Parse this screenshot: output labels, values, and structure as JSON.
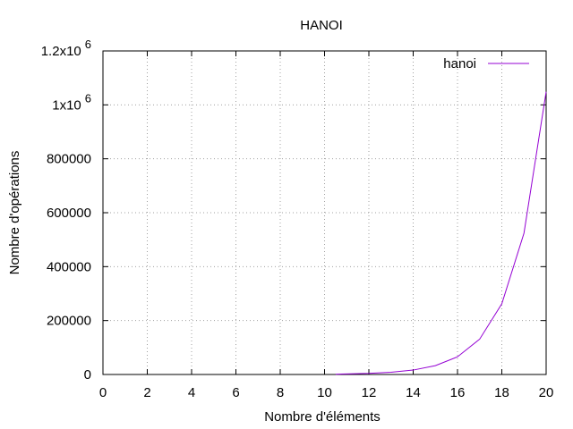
{
  "chart_data": {
    "type": "line",
    "title": "HANOI",
    "xlabel": "Nombre d'éléments",
    "ylabel": "Nombre d'opérations",
    "xlim": [
      0,
      20
    ],
    "ylim": [
      0,
      1200000
    ],
    "x_ticks": [
      0,
      2,
      4,
      6,
      8,
      10,
      12,
      14,
      16,
      18,
      20
    ],
    "y_ticks": [
      0,
      200000,
      400000,
      600000,
      800000,
      1000000,
      1200000
    ],
    "y_tick_labels": [
      "0",
      "200000",
      "400000",
      "600000",
      "800000",
      "1x10^6",
      "1.2x10^6"
    ],
    "grid": true,
    "legend_position": "top-right",
    "series": [
      {
        "name": "hanoi",
        "color": "#9400d3",
        "x": [
          10.5,
          11,
          12,
          13,
          14,
          15,
          16,
          17,
          18,
          19,
          20
        ],
        "y": [
          1000,
          2047,
          4095,
          8191,
          16383,
          32767,
          65535,
          131071,
          262143,
          524287,
          1048575
        ]
      }
    ]
  }
}
